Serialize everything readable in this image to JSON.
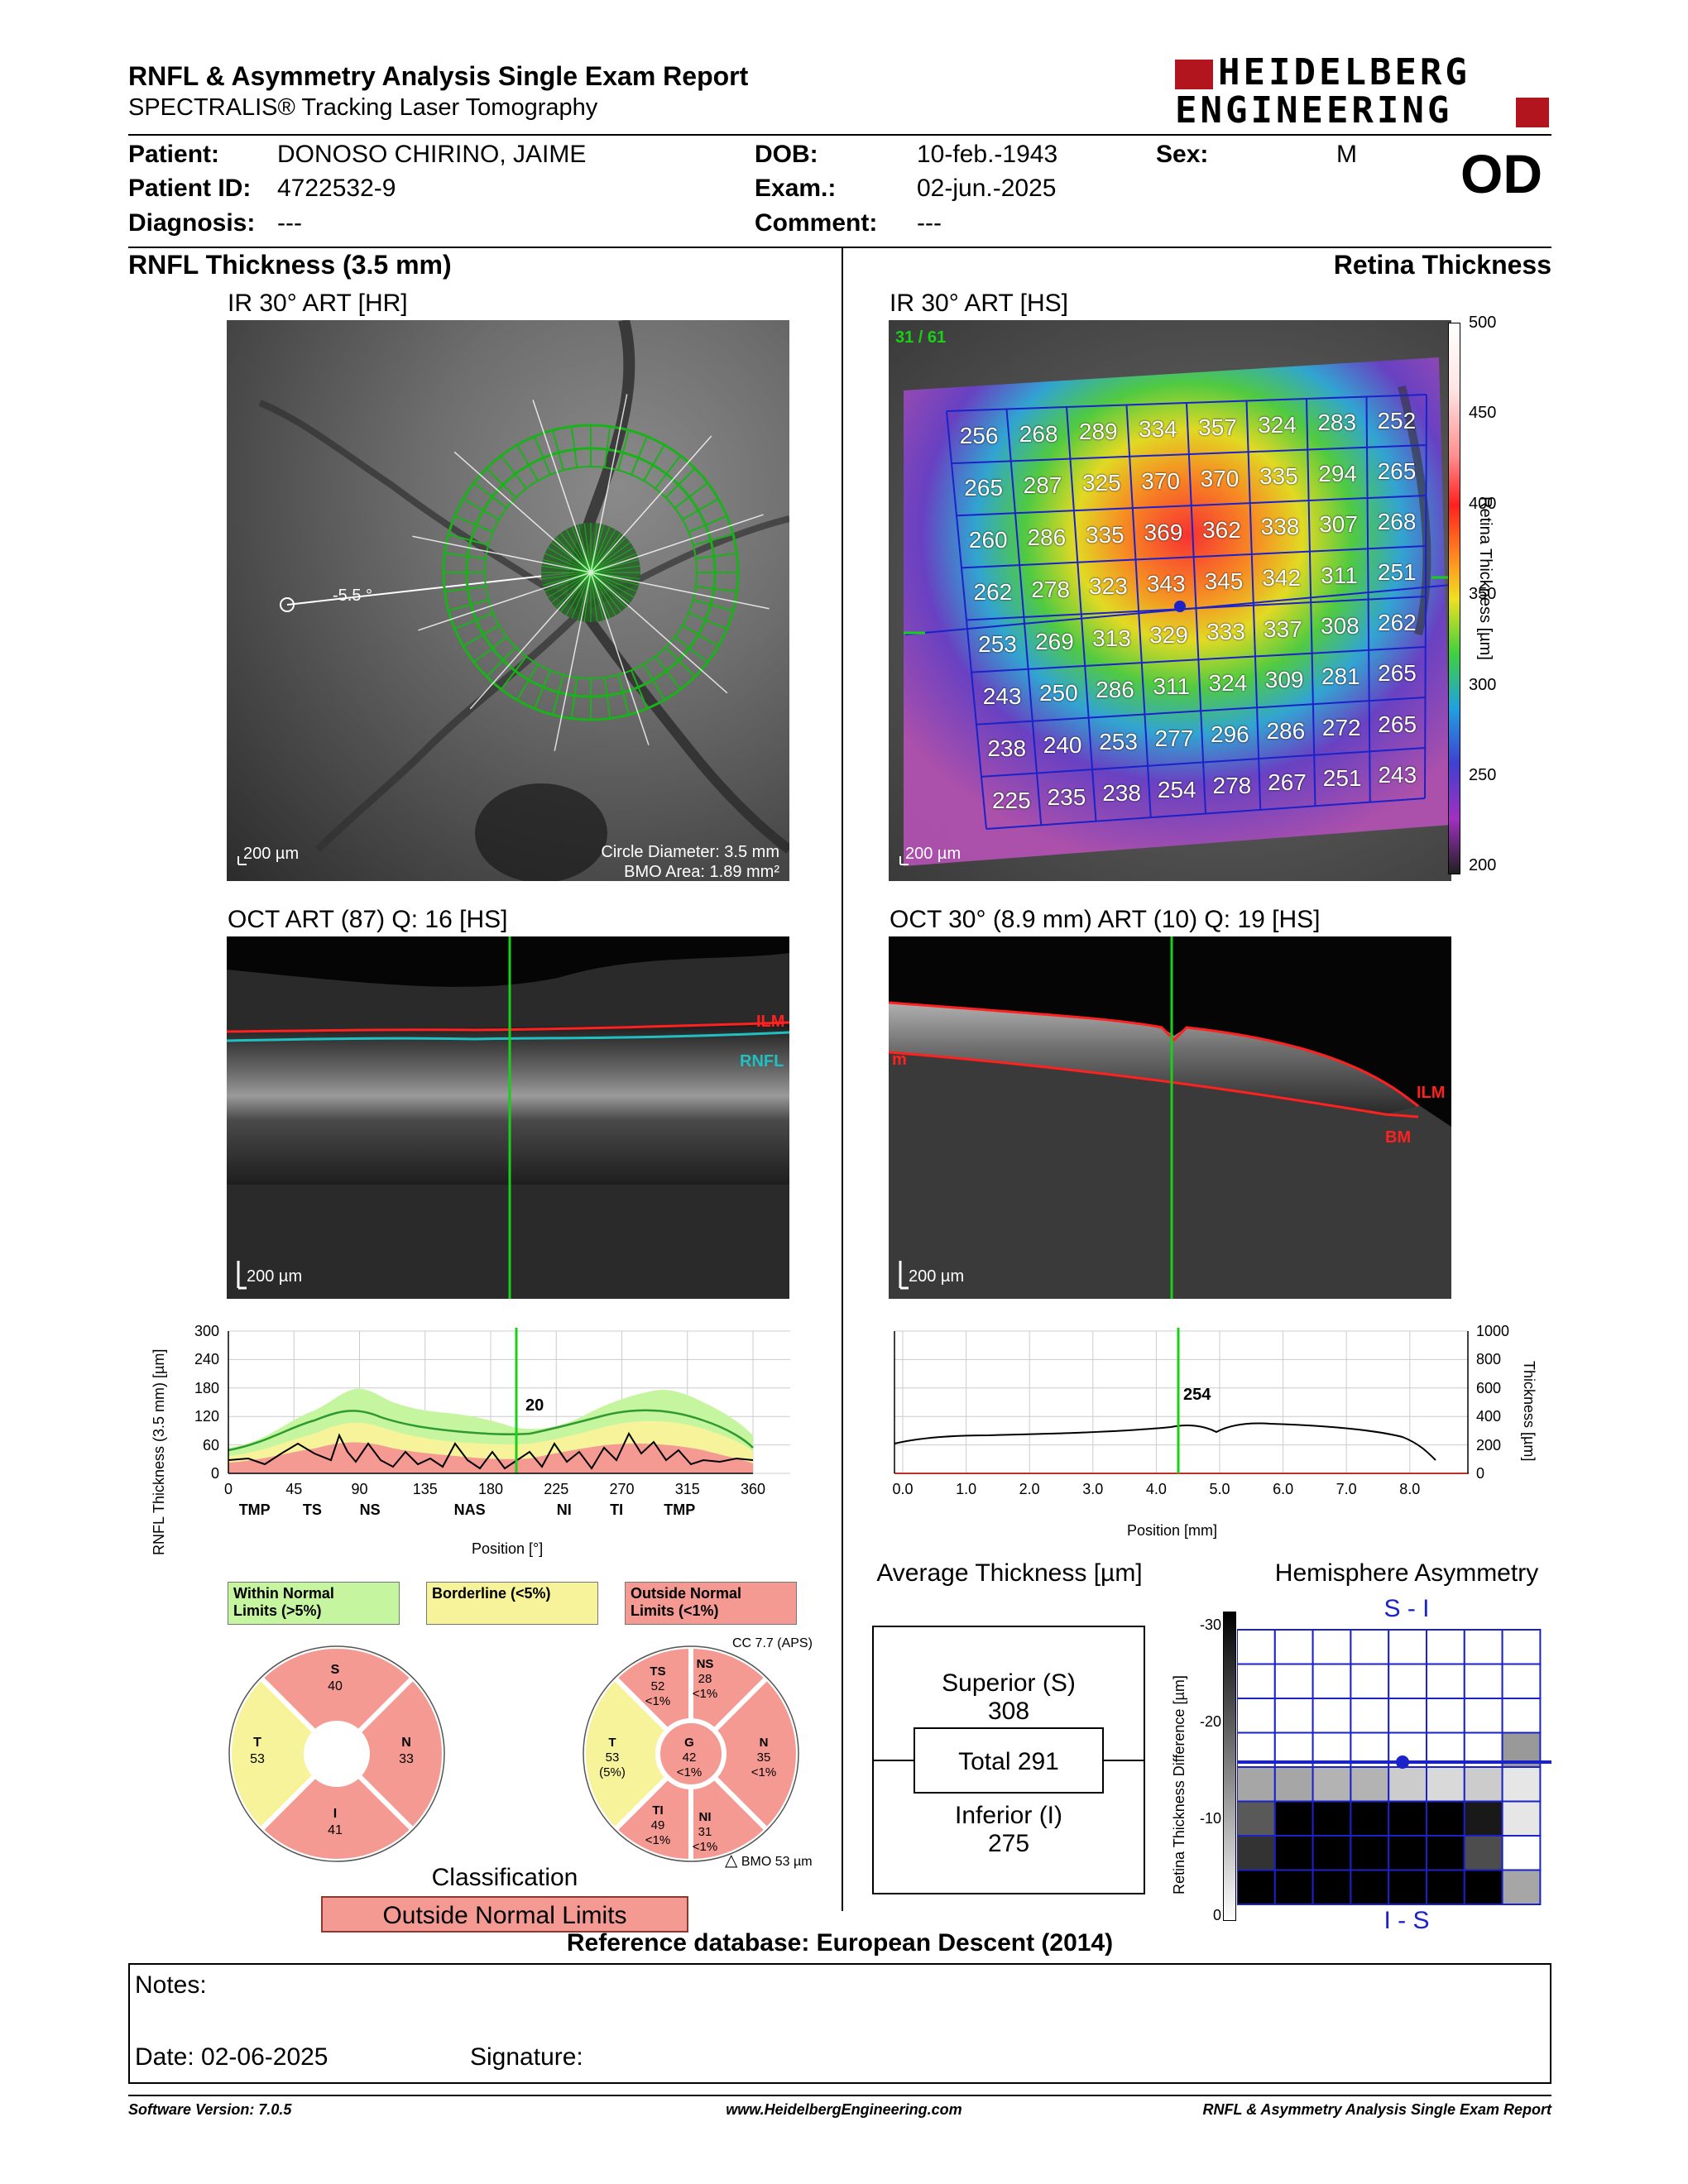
{
  "header": {
    "title": "RNFL & Asymmetry Analysis Single Exam Report",
    "subtitle": "SPECTRALIS® Tracking Laser Tomography",
    "logo_line1": "HEIDELBERG",
    "logo_line2": "ENGINEERING"
  },
  "patient": {
    "patient_label": "Patient:",
    "patient_value": "DONOSO CHIRINO, JAIME",
    "id_label": "Patient ID:",
    "id_value": "4722532-9",
    "diagnosis_label": "Diagnosis:",
    "diagnosis_value": "---",
    "dob_label": "DOB:",
    "dob_value": "10-feb.-1943",
    "exam_label": "Exam.:",
    "exam_value": "02-jun.-2025",
    "comment_label": "Comment:",
    "comment_value": "---",
    "sex_label": "Sex:",
    "sex_value": "M",
    "eye": "OD"
  },
  "left": {
    "section_title": "RNFL Thickness (3.5 mm)",
    "ir_title": "IR 30° ART [HR]",
    "ir_angle": "-5.5 °",
    "ir_scale": "200 µm",
    "ir_circle": "Circle Diameter: 3.5 mm",
    "ir_bmo": "BMO Area: 1.89 mm²",
    "oct_title": "OCT ART (87) Q: 16 [HS]",
    "oct_ilm": "ILM",
    "oct_rnfl": "RNFL",
    "oct_scale": "200 µm"
  },
  "right": {
    "section_title": "Retina Thickness",
    "ir_title": "IR 30° ART [HS]",
    "frame": "31 / 61",
    "ir_scale": "200 µm",
    "colorbar_label": "Retina Thickness [µm]",
    "colorbar_ticks": [
      "500",
      "450",
      "400",
      "350",
      "300",
      "250",
      "200"
    ],
    "oct_title": "OCT 30° (8.9 mm) ART (10) Q: 19 [HS]",
    "oct_ilm": "ILM",
    "oct_bm": "BM",
    "oct_m": "m",
    "oct_scale": "200 µm"
  },
  "grid_values": [
    [
      "256",
      "268",
      "289",
      "334",
      "357",
      "324",
      "283",
      "252"
    ],
    [
      "265",
      "287",
      "325",
      "370",
      "370",
      "335",
      "294",
      "265"
    ],
    [
      "260",
      "286",
      "335",
      "369",
      "362",
      "338",
      "307",
      "268"
    ],
    [
      "262",
      "278",
      "323",
      "343",
      "345",
      "342",
      "311",
      "251"
    ],
    [
      "253",
      "269",
      "313",
      "329",
      "333",
      "337",
      "308",
      "262"
    ],
    [
      "243",
      "250",
      "286",
      "311",
      "324",
      "309",
      "281",
      "265"
    ],
    [
      "238",
      "240",
      "253",
      "277",
      "296",
      "286",
      "272",
      "265"
    ],
    [
      "225",
      "235",
      "238",
      "254",
      "278",
      "267",
      "251",
      "243"
    ]
  ],
  "rnfl_chart": {
    "ylabel": "RNFL Thickness (3.5 mm) [µm]",
    "xlabel": "Position [°]",
    "yticks": [
      "300",
      "240",
      "180",
      "120",
      "60",
      "0"
    ],
    "xticks": [
      "0",
      "45",
      "90",
      "135",
      "180",
      "225",
      "270",
      "315",
      "360"
    ],
    "sectors": [
      "TMP",
      "TS",
      "NS",
      "NAS",
      "NI",
      "TI",
      "TMP"
    ],
    "cursor_value": "20"
  },
  "retina_chart": {
    "ylabel": "Thickness [µm]",
    "xlabel": "Position [mm]",
    "yticks": [
      "1000",
      "800",
      "600",
      "400",
      "200",
      "0"
    ],
    "xticks": [
      "0.0",
      "1.0",
      "2.0",
      "3.0",
      "4.0",
      "5.0",
      "6.0",
      "7.0",
      "8.0"
    ],
    "cursor_value": "254"
  },
  "legend": {
    "within": "Within Normal Limits (>5%)",
    "within_l1": "Within Normal",
    "within_l2": "Limits (>5%)",
    "borderline": "Borderline (<5%)",
    "outside_l1": "Outside Normal",
    "outside_l2": "Limits (<1%)",
    "cc": "CC 7.7 (APS)"
  },
  "sectors4": {
    "S_label": "S",
    "S_val": "40",
    "T_label": "T",
    "T_val": "53",
    "N_label": "N",
    "N_val": "33",
    "I_label": "I",
    "I_val": "41"
  },
  "sectors6": {
    "TS_label": "TS",
    "TS_val": "52",
    "TS_pct": "<1%",
    "NS_label": "NS",
    "NS_val": "28",
    "NS_pct": "<1%",
    "T_label": "T",
    "T_val": "53",
    "T_pct": "(5%)",
    "G_label": "G",
    "G_val": "42",
    "G_pct": "<1%",
    "N_label": "N",
    "N_val": "35",
    "N_pct": "<1%",
    "TI_label": "TI",
    "TI_val": "49",
    "TI_pct": "<1%",
    "NI_label": "NI",
    "NI_val": "31",
    "NI_pct": "<1%",
    "bmo": "BMO 53 µm"
  },
  "classification": {
    "title": "Classification",
    "value": "Outside Normal Limits"
  },
  "avg_thickness": {
    "title": "Average Thickness [µm]",
    "superior_label": "Superior (S)",
    "superior_value": "308",
    "total": "Total 291",
    "inferior_label": "Inferior (I)",
    "inferior_value": "275"
  },
  "asymmetry": {
    "title": "Hemisphere Asymmetry",
    "top": "S - I",
    "bottom": "I - S",
    "ylabel": "Retina Thickness Difference [µm]",
    "ticks": [
      "-30",
      "-20",
      "-10",
      "0"
    ]
  },
  "reference": "Reference database: European Descent (2014)",
  "notes": {
    "notes_label": "Notes:",
    "date": "Date: 02-06-2025",
    "signature": "Signature:"
  },
  "footer": {
    "software": "Software Version: 7.0.5",
    "url": "www.HeidelbergEngineering.com",
    "report": "RNFL & Asymmetry Analysis Single Exam Report"
  },
  "colors": {
    "within": "#c6f5a0",
    "borderline": "#f6f39a",
    "outside": "#f49a92",
    "logo_red": "#b3151e",
    "grid_blue": "#1a22c8"
  }
}
